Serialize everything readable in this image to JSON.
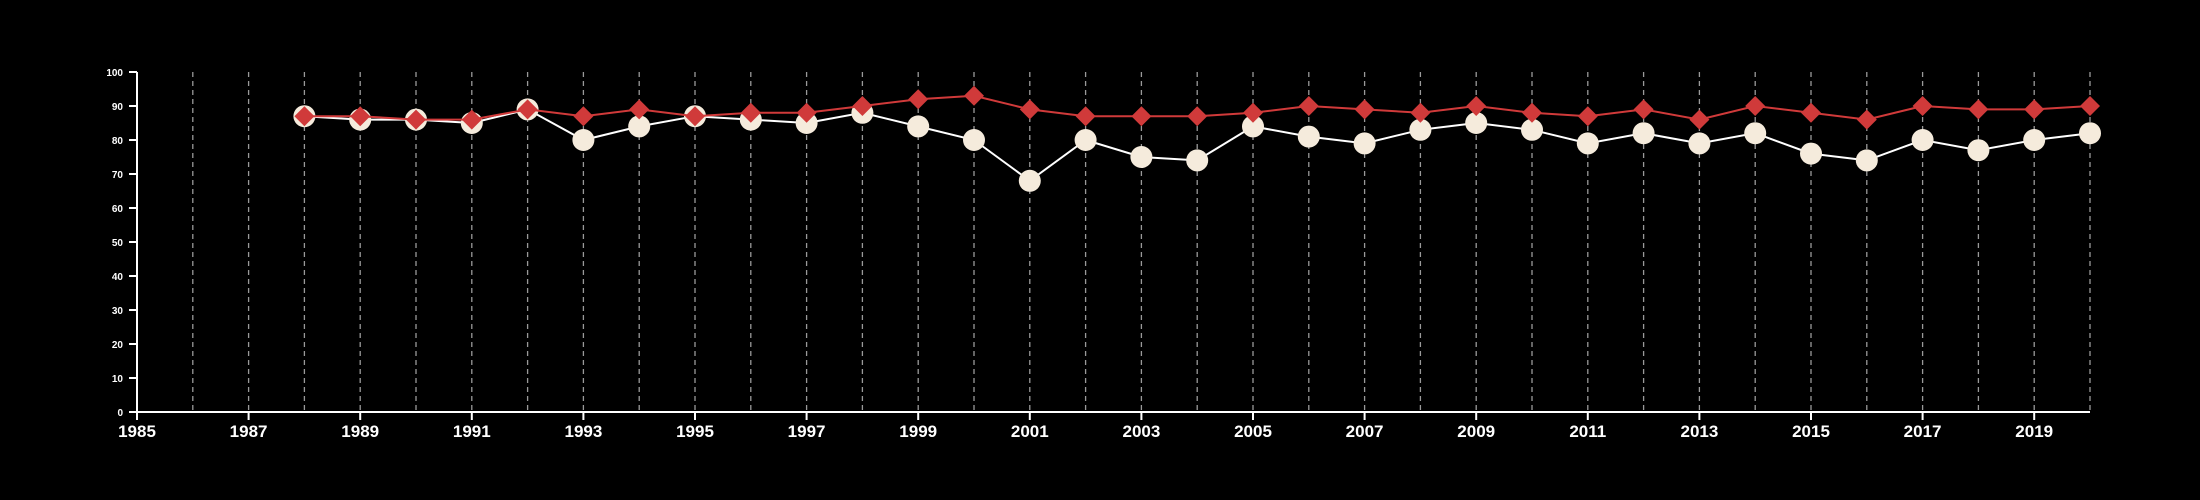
{
  "chart_data": {
    "type": "line",
    "title": "",
    "xlabel": "",
    "ylabel": "",
    "xlim": [
      1985,
      2020
    ],
    "ylim": [
      0,
      100
    ],
    "x_ticks": [
      1985,
      1987,
      1989,
      1991,
      1993,
      1995,
      1997,
      1999,
      2001,
      2003,
      2005,
      2007,
      2009,
      2011,
      2013,
      2015,
      2017,
      2019
    ],
    "y_ticks": [
      0,
      10,
      20,
      30,
      40,
      50,
      60,
      70,
      80,
      90,
      100
    ],
    "x_tick_labels": [
      "1985",
      "1987",
      "1989",
      "1991",
      "1993",
      "1995",
      "1997",
      "1999",
      "2001",
      "2003",
      "2005",
      "2007",
      "2009",
      "2011",
      "2013",
      "2015",
      "2017",
      "2019"
    ],
    "y_tick_labels": [
      "0",
      "10",
      "20",
      "30",
      "40",
      "50",
      "60",
      "70",
      "80",
      "90",
      "100"
    ],
    "vertical_grid": true,
    "horizontal_grid": false,
    "legend": "none",
    "x": [
      1988,
      1989,
      1990,
      1991,
      1992,
      1993,
      1994,
      1995,
      1996,
      1997,
      1998,
      1999,
      2000,
      2001,
      2002,
      2003,
      2004,
      2005,
      2006,
      2007,
      2008,
      2009,
      2010,
      2011,
      2012,
      2013,
      2014,
      2015,
      2016,
      2017,
      2018,
      2019,
      2020
    ],
    "series": [
      {
        "marker": "circle",
        "color": "#f5ebdc",
        "line_color": "#ffffff",
        "values": [
          87,
          86,
          86,
          85,
          89,
          80,
          84,
          87,
          86,
          85,
          88,
          84,
          80,
          68,
          80,
          75,
          74,
          84,
          81,
          79,
          83,
          85,
          83,
          79,
          82,
          79,
          82,
          76,
          74,
          80,
          77,
          80,
          82
        ]
      },
      {
        "marker": "diamond",
        "color": "#d03a3a",
        "line_color": "#d03a3a",
        "values": [
          87,
          87,
          86,
          86,
          89,
          87,
          89,
          87,
          88,
          88,
          90,
          92,
          93,
          89,
          87,
          87,
          87,
          88,
          90,
          89,
          88,
          90,
          88,
          87,
          89,
          86,
          90,
          88,
          86,
          90,
          89,
          89,
          90
        ]
      }
    ]
  }
}
